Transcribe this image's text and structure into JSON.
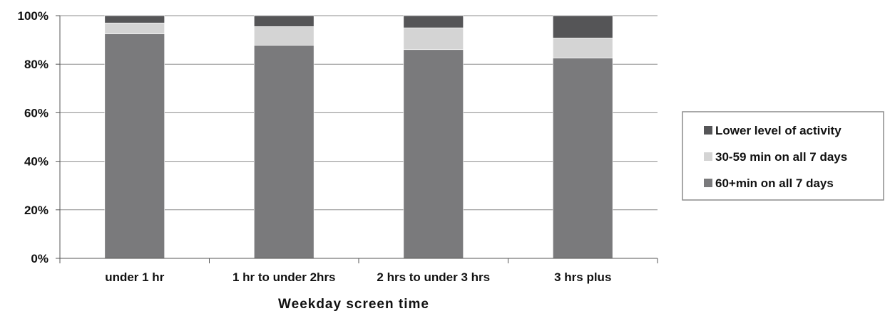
{
  "chart_data": {
    "type": "bar",
    "stacked": true,
    "percent_stacked": true,
    "title": "",
    "xlabel": "Weekday screen time",
    "ylabel": "",
    "ylim": [
      0,
      100
    ],
    "yticks": [
      "0%",
      "20%",
      "40%",
      "60%",
      "80%",
      "100%"
    ],
    "categories": [
      "under 1 hr",
      "1 hr to under 2hrs",
      "2 hrs to under 3 hrs",
      "3 hrs plus"
    ],
    "series": [
      {
        "name": "60+min on all 7 days",
        "values": [
          92.5,
          87.8,
          86,
          82.5
        ],
        "color": "#7a7a7c"
      },
      {
        "name": "30-59 min on all 7 days",
        "values": [
          4.5,
          7.7,
          9,
          8.3
        ],
        "color": "#d4d4d4"
      },
      {
        "name": "Lower level of activity",
        "values": [
          3,
          4.5,
          5,
          9.2
        ],
        "color": "#555557"
      }
    ],
    "legend": {
      "position": "right",
      "order": [
        "Lower level of activity",
        "30-59 min on all 7 days",
        "60+min on all 7 days"
      ]
    },
    "grid": true
  }
}
